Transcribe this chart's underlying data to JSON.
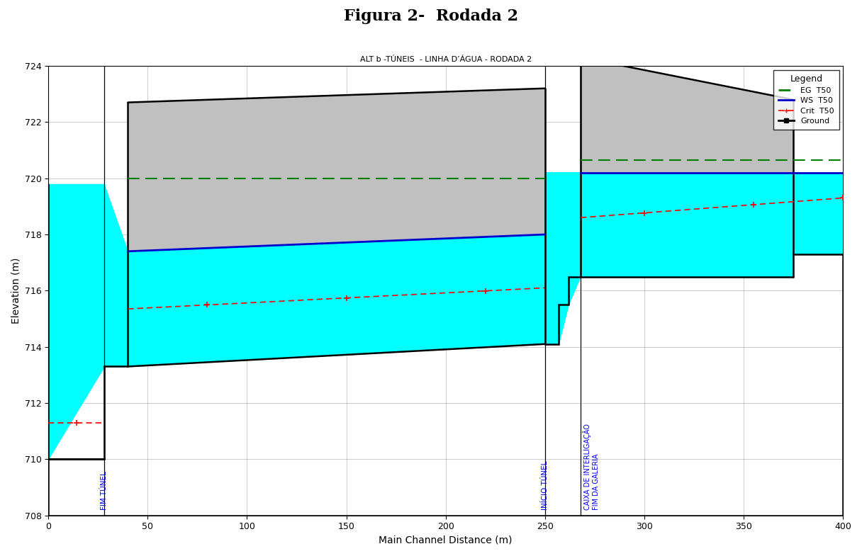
{
  "title": "Figura 2-  Rodada 2",
  "chart_title": "ALT b -TÚNEIS  - LINHA D’ÁGUA - RODADA 2",
  "xlabel": "Main Channel Distance (m)",
  "ylabel": "Elevation (m)",
  "xlim": [
    0,
    400
  ],
  "ylim": [
    708,
    724
  ],
  "yticks": [
    708,
    710,
    712,
    714,
    716,
    718,
    720,
    722,
    724
  ],
  "xticks": [
    0,
    50,
    100,
    150,
    200,
    250,
    300,
    350,
    400
  ],
  "color_gray": "#c0c0c0",
  "color_water": "#00ffff",
  "color_eg": "#008000",
  "color_ws": "#0000cd",
  "color_crit": "#ff0000",
  "color_black": "#000000",
  "vline_fim_tunel": 28,
  "vline_inicio_tunel": 250,
  "vline_caixa": 268,
  "label_fim_tunel": "FIM TÚNEL",
  "label_inicio_tunel": "INÍCIO TÚNEL",
  "label_caixa": "CAIXA DE INTERLIGAÇÃO\nFIM DA GALERIA",
  "legend_title": "Legend",
  "leg_eg": "EG  T50",
  "leg_ws": "WS  T50",
  "leg_crit": "Crit  T50",
  "leg_ground": "Ground"
}
